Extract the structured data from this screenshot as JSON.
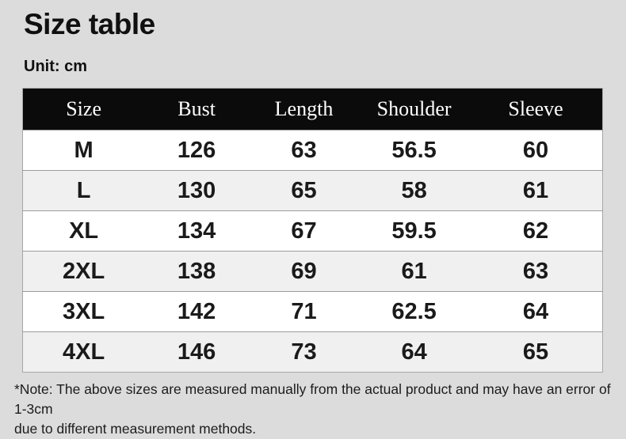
{
  "page": {
    "title": "Size table",
    "unit_label": "Unit: cm",
    "note_line1": "*Note: The above sizes are measured manually from the actual product and may have an error of 1-3cm",
    "note_line2": "due to different measurement methods."
  },
  "chart_data": {
    "type": "table",
    "title": "Size table",
    "unit": "cm",
    "columns": [
      "Size",
      "Bust",
      "Length",
      "Shoulder",
      "Sleeve"
    ],
    "rows": [
      [
        "M",
        "126",
        "63",
        "56.5",
        "60"
      ],
      [
        "L",
        "130",
        "65",
        "58",
        "61"
      ],
      [
        "XL",
        "134",
        "67",
        "59.5",
        "62"
      ],
      [
        "2XL",
        "138",
        "69",
        "61",
        "63"
      ],
      [
        "3XL",
        "142",
        "71",
        "62.5",
        "64"
      ],
      [
        "4XL",
        "146",
        "73",
        "64",
        "65"
      ]
    ]
  },
  "colors": {
    "page_background": "#dcdcdc",
    "header_background": "#0b0b0b",
    "header_text": "#ffffff",
    "row_white": "#ffffff",
    "row_alt": "#f0f0f0",
    "row_border": "#9c9c9c",
    "text": "#1a1a1a"
  }
}
